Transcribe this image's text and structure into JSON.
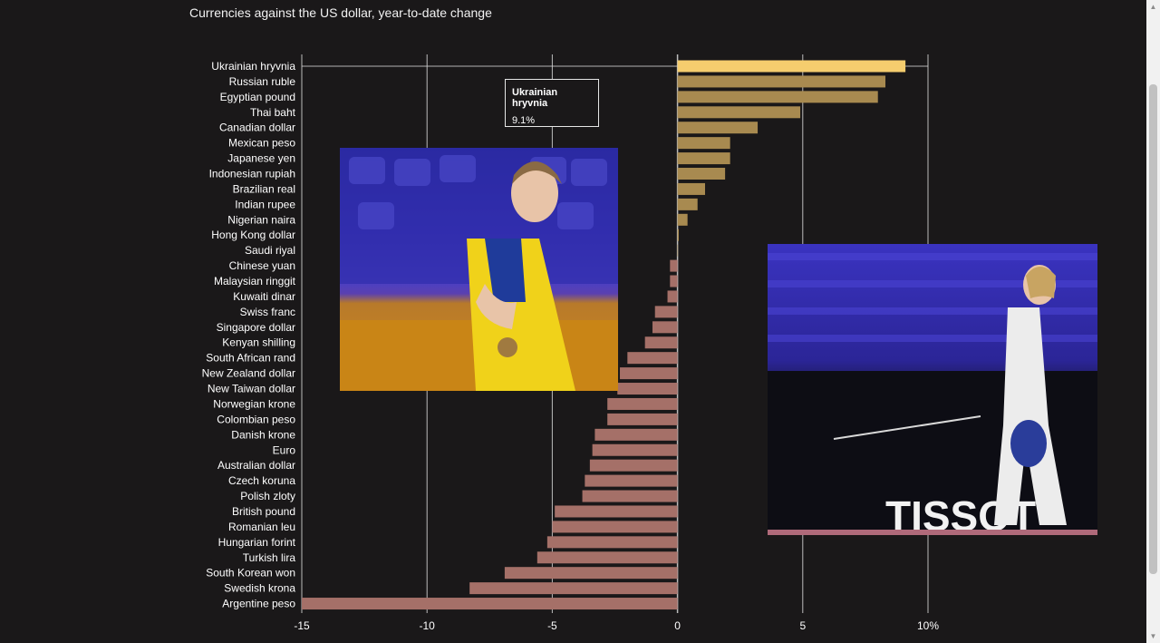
{
  "title": "Currencies against the US dollar, year-to-date change",
  "tooltip": {
    "name": "Ukrainian hryvnia",
    "value": "9.1%"
  },
  "images": {
    "photo_left": "fencer-with-medal-photo",
    "photo_right": "fencer-celebrating-photo"
  },
  "colors": {
    "background": "#1a1819",
    "positive_bar": "#a88a50",
    "highlight_bar": "#f5cd6e",
    "negative_bar": "#a57068",
    "grid": "#d9d9d9",
    "text": "#ffffff"
  },
  "chart_data": {
    "type": "bar",
    "orientation": "horizontal",
    "title": "Currencies against the US dollar, year-to-date change",
    "xlim": [
      -15,
      10
    ],
    "xticks": [
      -15,
      -10,
      -5,
      0,
      5,
      10
    ],
    "xtick_labels": [
      "-15",
      "-10",
      "-5",
      "0",
      "5",
      "10%"
    ],
    "grid": true,
    "highlighted": "Ukrainian hryvnia",
    "categories": [
      "Ukrainian hryvnia",
      "Russian ruble",
      "Egyptian pound",
      "Thai baht",
      "Canadian dollar",
      "Mexican peso",
      "Japanese yen",
      "Indonesian rupiah",
      "Brazilian real",
      "Indian rupee",
      "Nigerian naira",
      "Hong Kong dollar",
      "Saudi riyal",
      "Chinese yuan",
      "Malaysian ringgit",
      "Kuwaiti dinar",
      "Swiss franc",
      "Singapore dollar",
      "Kenyan shilling",
      "South African rand",
      "New Zealand dollar",
      "New Taiwan dollar",
      "Norwegian krone",
      "Colombian peso",
      "Danish krone",
      "Euro",
      "Australian dollar",
      "Czech koruna",
      "Polish zloty",
      "British pound",
      "Romanian leu",
      "Hungarian forint",
      "Turkish lira",
      "South Korean won",
      "Swedish krona",
      "Argentine peso"
    ],
    "values": [
      9.1,
      8.3,
      8.0,
      4.9,
      3.2,
      2.1,
      2.1,
      1.9,
      1.1,
      0.8,
      0.4,
      0.05,
      0.0,
      -0.3,
      -0.3,
      -0.4,
      -0.9,
      -1.0,
      -1.3,
      -2.0,
      -2.3,
      -2.4,
      -2.8,
      -2.8,
      -3.3,
      -3.4,
      -3.5,
      -3.7,
      -3.8,
      -4.9,
      -5.0,
      -5.2,
      -5.6,
      -6.9,
      -8.3,
      -15.0
    ]
  }
}
